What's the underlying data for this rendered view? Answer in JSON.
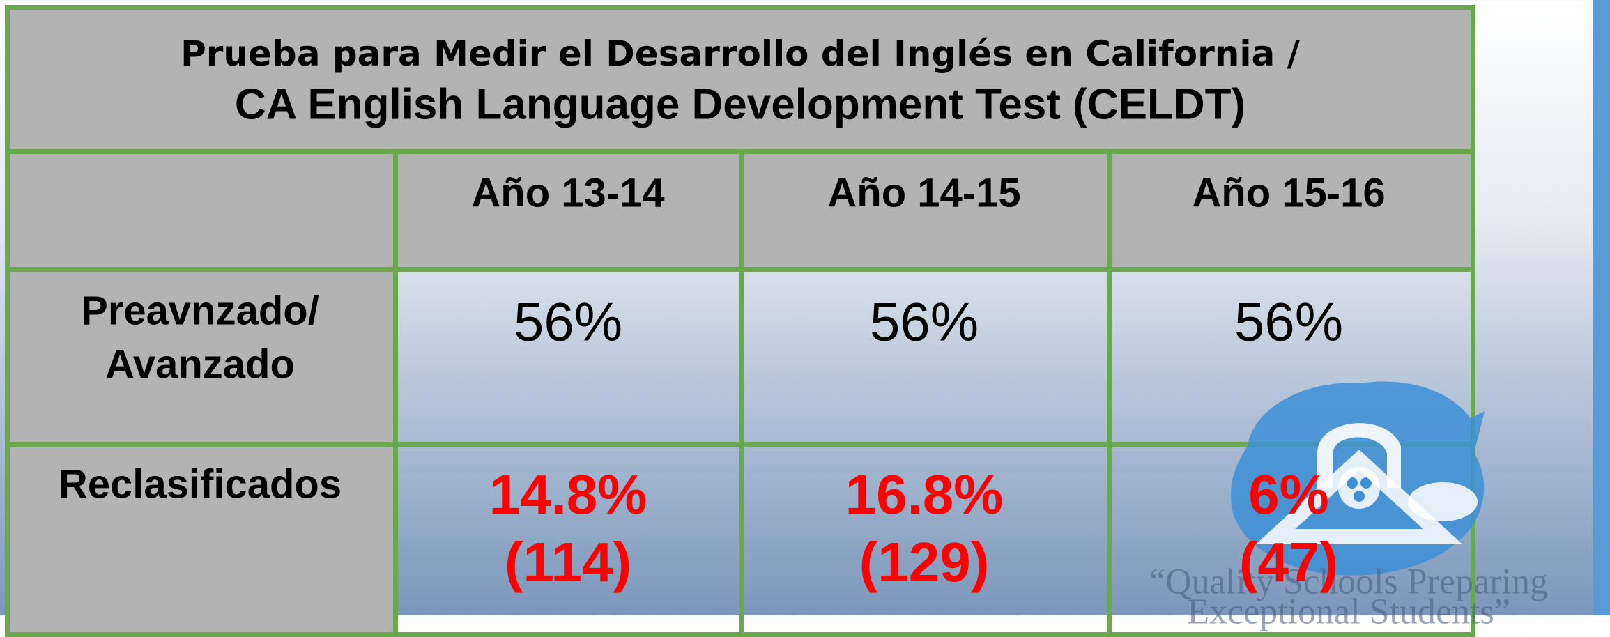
{
  "header": {
    "title_line1": "Prueba para Medir el Desarrollo del Inglés en California /",
    "title_line2": "CA English Language Development Test (CELDT)"
  },
  "table": {
    "columns": [
      "Año 13-14",
      "Año 14-15",
      "Año 15-16"
    ],
    "rows": [
      {
        "label": [
          "Preavnzado/",
          "Avanzado"
        ],
        "cells": [
          "56%",
          "56%",
          "56%"
        ]
      },
      {
        "label": [
          "Reclasificados"
        ],
        "cells": [
          [
            "14.8%",
            "(114)"
          ],
          [
            "16.8%",
            "(129)"
          ],
          [
            "6%",
            "(47)"
          ]
        ]
      }
    ]
  },
  "watermark": [
    "“Quality Schools Preparing",
    "Exceptional Students”"
  ]
}
